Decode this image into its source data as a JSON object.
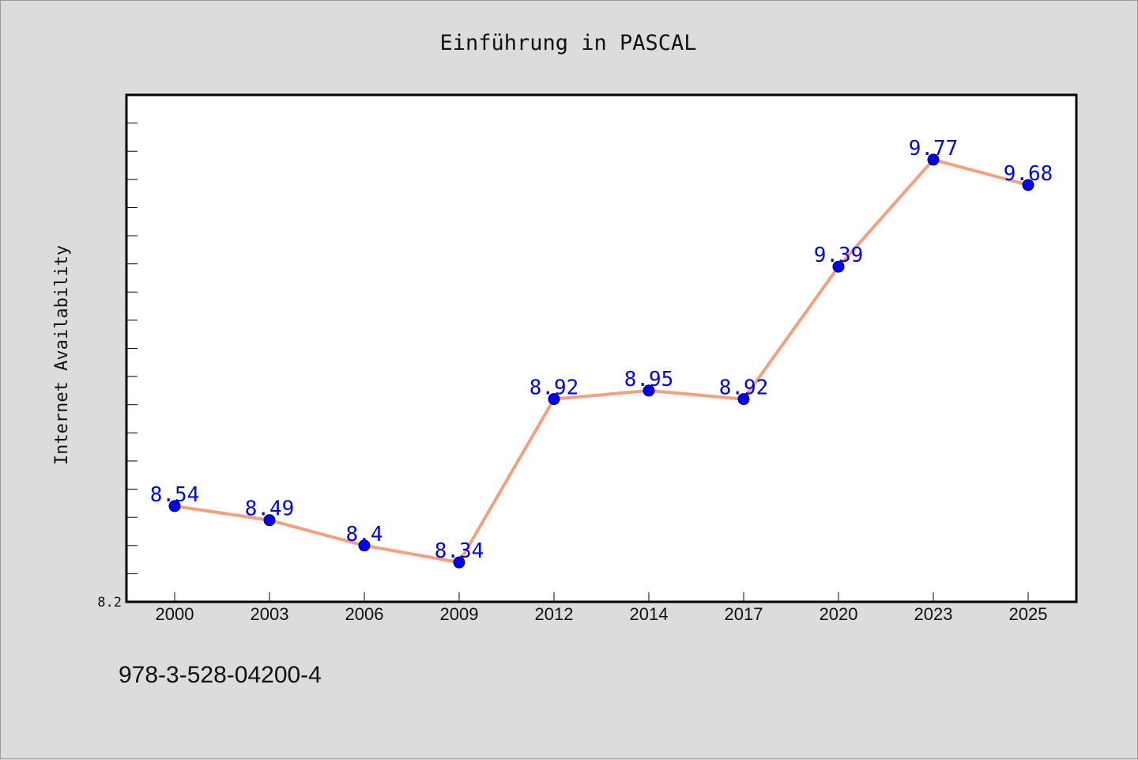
{
  "chart_data": {
    "type": "line",
    "title": "Einführung in PASCAL",
    "xlabel": "",
    "ylabel": "Internet Availability",
    "categories": [
      "2000",
      "2003",
      "2006",
      "2009",
      "2012",
      "2014",
      "2017",
      "2020",
      "2023",
      "2025"
    ],
    "series": [
      {
        "values": [
          8.54,
          8.49,
          8.4,
          8.34,
          8.92,
          8.95,
          8.92,
          9.39,
          9.77,
          9.68
        ]
      }
    ],
    "data_labels": [
      "8.54",
      "8.49",
      "8.4",
      "8.34",
      "8.92",
      "8.95",
      "8.92",
      "9.39",
      "9.77",
      "9.68"
    ],
    "ylim": [
      8.2,
      10.0
    ],
    "y_tick_label": "8.2",
    "grid": false,
    "legend": "none",
    "colors": {
      "line": "#f4a07c",
      "marker": "#0000ff",
      "data_label": "#0000ff",
      "background": "#dcdcdc",
      "plot_background": "#ffffff"
    }
  },
  "footer": {
    "isbn": "978-3-528-04200-4"
  }
}
